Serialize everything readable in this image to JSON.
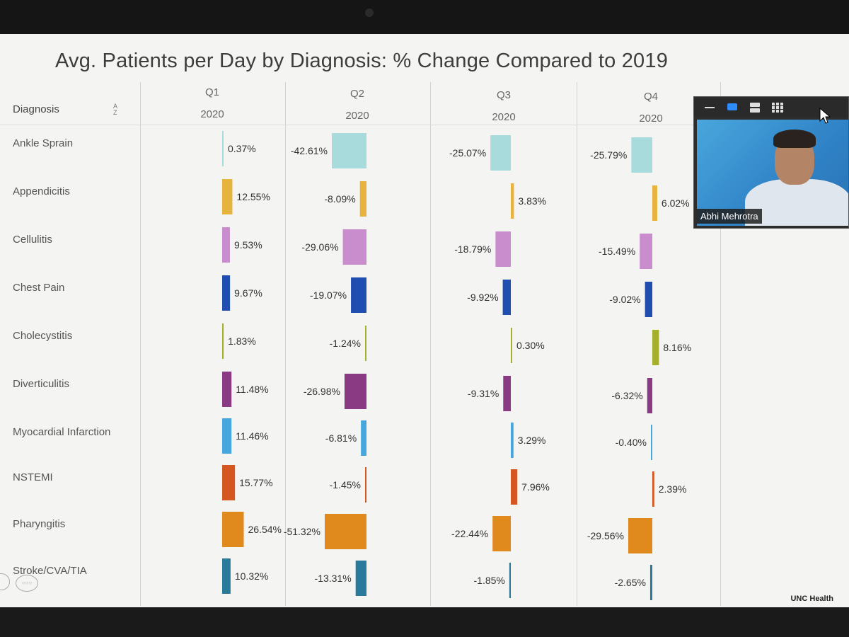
{
  "screen": {
    "title": "Avg. Patients per Day by Diagnosis: % Change Compared to 2019",
    "watermark": "UNC Health"
  },
  "table": {
    "diagnosis_header": "Diagnosis",
    "sort_icon": "sort-az-icon",
    "sort_glyph_top": "A",
    "sort_glyph_bottom": "Z",
    "columns": [
      {
        "quarter": "Q1",
        "year": "2020"
      },
      {
        "quarter": "Q2",
        "year": "2020"
      },
      {
        "quarter": "Q3",
        "year": "2020"
      },
      {
        "quarter": "Q4",
        "year": "2020"
      }
    ]
  },
  "pip": {
    "participant_name": "Abhi Mehrotra",
    "toolbar_icons": [
      "minimize-icon",
      "speaker-view-icon",
      "side-by-side-icon",
      "gallery-view-icon"
    ]
  },
  "chart_data": {
    "type": "bar",
    "title": "Avg. Patients per Day by Diagnosis: % Change Compared to 2019",
    "categories": [
      "Ankle Sprain",
      "Appendicitis",
      "Cellulitis",
      "Chest Pain",
      "Cholecystitis",
      "Diverticulitis",
      "Myocardial Infarction",
      "NSTEMI",
      "Pharyngitis",
      "Stroke/CVA/TIA"
    ],
    "colors": [
      "#a8dcdc",
      "#e6b33c",
      "#c98ccd",
      "#1f4db0",
      "#a5b12d",
      "#8a3a82",
      "#46a6dd",
      "#d45621",
      "#e08a1e",
      "#2a7a9c"
    ],
    "series": [
      {
        "name": "Q1 2020",
        "values": [
          0.37,
          12.55,
          9.53,
          9.67,
          1.83,
          11.48,
          11.46,
          15.77,
          26.54,
          10.32
        ],
        "labels": [
          "0.37%",
          "12.55%",
          "9.53%",
          "9.67%",
          "1.83%",
          "11.48%",
          "11.46%",
          "15.77%",
          "26.54%",
          "10.32%"
        ]
      },
      {
        "name": "Q2 2020",
        "values": [
          -42.61,
          -8.09,
          -29.06,
          -19.07,
          -1.24,
          -26.98,
          -6.81,
          -1.45,
          -51.32,
          -13.31
        ],
        "labels": [
          "-42.61%",
          "-8.09%",
          "-29.06%",
          "-19.07%",
          "-1.24%",
          "-26.98%",
          "-6.81%",
          "-1.45%",
          "-51.32%",
          "-13.31%"
        ]
      },
      {
        "name": "Q3 2020",
        "values": [
          -25.07,
          3.83,
          -18.79,
          -9.92,
          0.3,
          -9.31,
          3.29,
          7.96,
          -22.44,
          -1.85
        ],
        "labels": [
          "-25.07%",
          "3.83%",
          "-18.79%",
          "-9.92%",
          "0.30%",
          "-9.31%",
          "3.29%",
          "7.96%",
          "-22.44%",
          "-1.85%"
        ]
      },
      {
        "name": "Q4 2020",
        "values": [
          -25.79,
          6.02,
          -15.49,
          -9.02,
          8.16,
          -6.32,
          -0.4,
          2.39,
          -29.56,
          -2.65
        ],
        "labels": [
          "-25.79%",
          "6.02%",
          "-15.49%",
          "-9.02%",
          "8.16%",
          "-6.32%",
          "-0.40%",
          "2.39%",
          "-29.56%",
          "-2.65%"
        ]
      }
    ]
  }
}
